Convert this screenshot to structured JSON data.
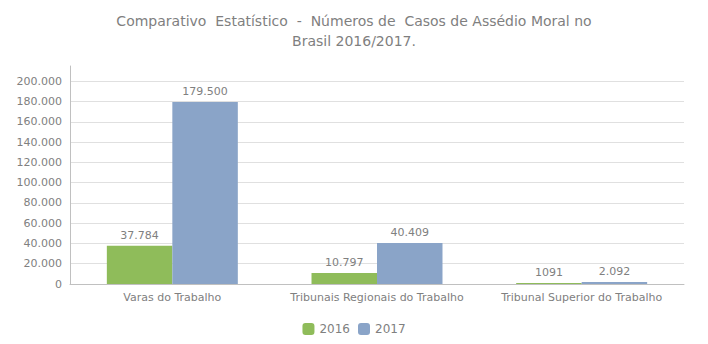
{
  "chart_data": {
    "type": "bar",
    "title": "Comparativo  Estatístico  -  Números de  Casos de Assédio Moral no\nBrasil 2016/2017.",
    "categories": [
      "Varas do Trabalho",
      "Tribunais Regionais do Trabalho",
      "Tribunal Superior do Trabalho"
    ],
    "series": [
      {
        "name": "2016",
        "color": "#8fbc5a",
        "values": [
          37784,
          10797,
          1091
        ],
        "value_labels": [
          "37.784",
          "10.797",
          "1091"
        ]
      },
      {
        "name": "2017",
        "color": "#8aa4c8",
        "values": [
          179500,
          40409,
          2092
        ],
        "value_labels": [
          "179.500",
          "40.409",
          "2.092"
        ]
      }
    ],
    "ylim": [
      0,
      215000
    ],
    "yticks": [
      0,
      {
        "value": 20000,
        "label": "20.000"
      },
      {
        "value": 40000,
        "label": "40.000"
      },
      {
        "value": 60000,
        "label": "60.000"
      },
      {
        "value": 80000,
        "label": "80.000"
      },
      {
        "value": 100000,
        "label": "100.000"
      },
      {
        "value": 120000,
        "label": "120.000"
      },
      {
        "value": 140000,
        "label": "140.000"
      },
      {
        "value": 160000,
        "label": "160.000"
      },
      {
        "value": 180000,
        "label": "180.000"
      },
      {
        "value": 200000,
        "label": "200.000"
      }
    ],
    "grid": true,
    "legend": "bottom",
    "data_labels": true
  }
}
